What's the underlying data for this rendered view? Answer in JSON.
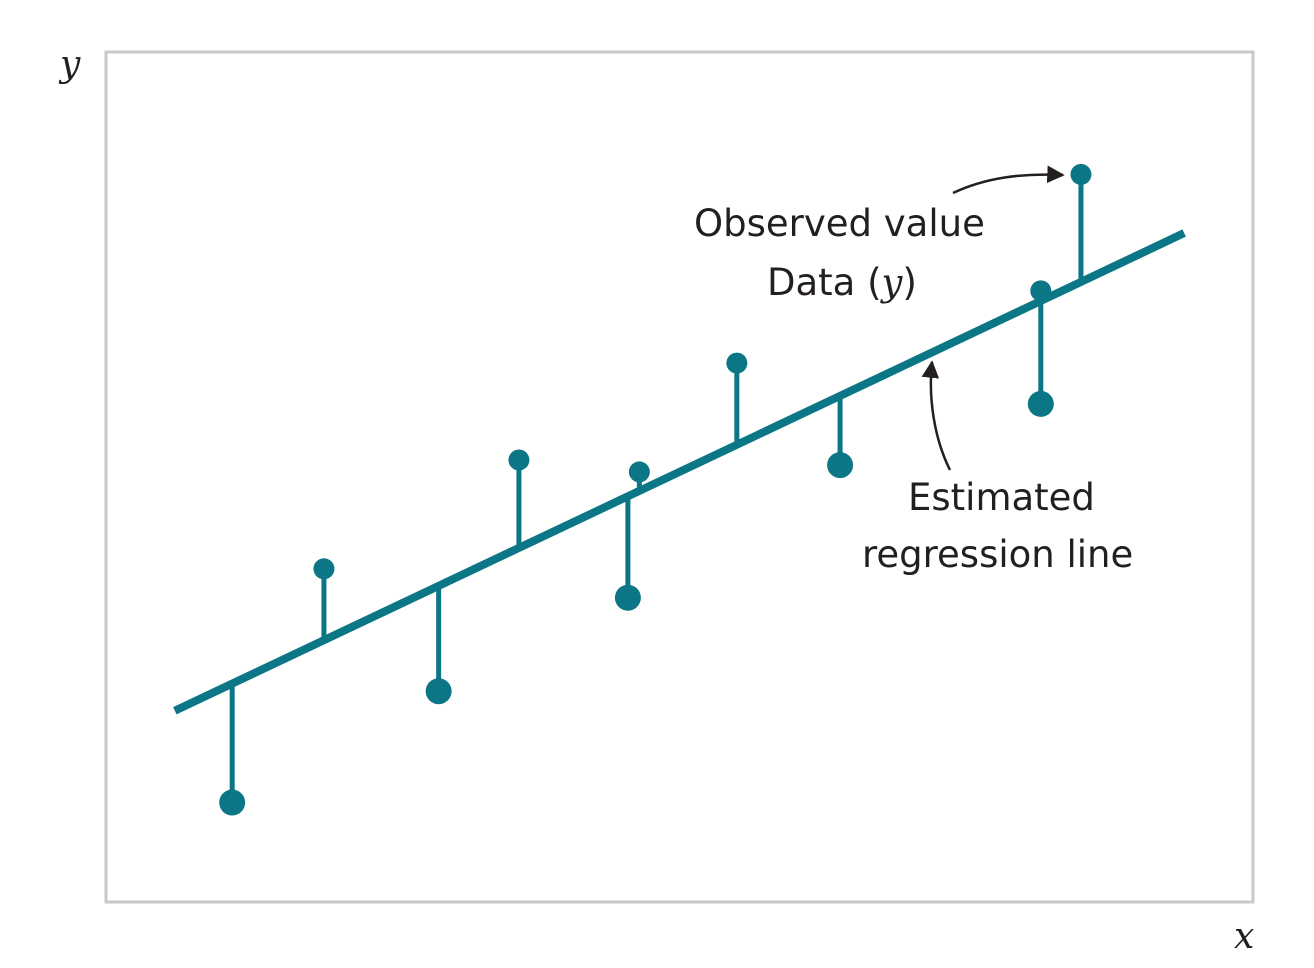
{
  "chart_data": {
    "type": "scatter",
    "xlabel": "x",
    "ylabel": "y",
    "grid": false,
    "legend": "none",
    "ticks": "none",
    "xlim": [
      0,
      100
    ],
    "ylim": [
      0,
      100
    ],
    "regression_line": {
      "x": [
        6,
        94
      ],
      "y": [
        22.5,
        78.7
      ]
    },
    "points": [
      {
        "x": 11,
        "y": 11.7,
        "side": "below"
      },
      {
        "x": 19,
        "y": 39.2,
        "side": "above"
      },
      {
        "x": 29,
        "y": 24.8,
        "side": "below"
      },
      {
        "x": 36,
        "y": 52.0,
        "side": "above"
      },
      {
        "x": 45.5,
        "y": 35.8,
        "side": "below"
      },
      {
        "x": 46.5,
        "y": 50.6,
        "side": "above"
      },
      {
        "x": 55,
        "y": 63.4,
        "side": "above"
      },
      {
        "x": 64,
        "y": 51.4,
        "side": "below"
      },
      {
        "x": 81.5,
        "y": 58.6,
        "side": "below"
      },
      {
        "x": 81.5,
        "y": 71.9,
        "side": "above"
      },
      {
        "x": 85,
        "y": 85.6,
        "side": "above"
      }
    ],
    "annotations": [
      {
        "id": "observed",
        "lines": [
          "Observed value"
        ],
        "prefix": "Data (",
        "var": "y",
        "suffix": ")"
      },
      {
        "id": "estimated",
        "lines": [
          "Estimated",
          "regression line"
        ]
      }
    ],
    "colors": {
      "series": "#0b7686",
      "frame": "#c9c9c9",
      "text": "#231f20"
    }
  }
}
